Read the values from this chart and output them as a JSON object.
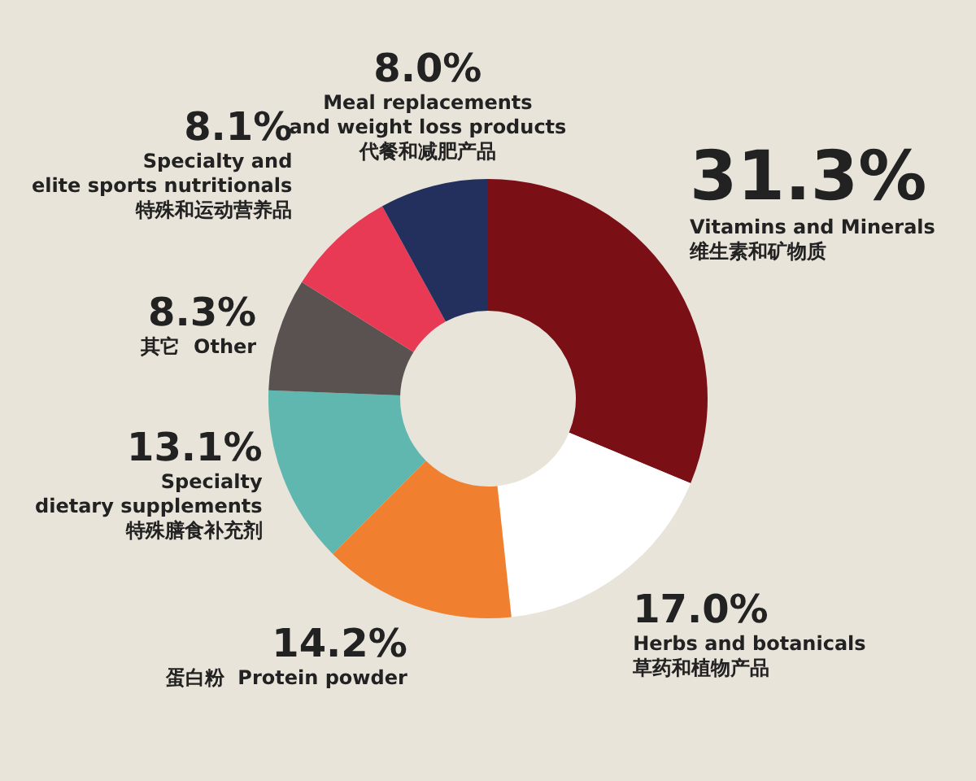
{
  "chart_data": {
    "type": "donut",
    "categories": [
      "Vitamins and Minerals\n维生素和矿物质",
      "Herbs and botanicals\n草药和植物产品",
      "蛋白粉  Protein powder",
      "Specialty\ndietary supplements\n特殊膳食补充剂",
      "其它  Other",
      "Specialty and\nelite sports nutritionals\n特殊和运动营养品",
      "Meal replacements\nand weight loss products\n代餐和减肥产品"
    ],
    "values": [
      31.3,
      17.0,
      14.2,
      13.1,
      8.3,
      8.1,
      8.0
    ],
    "value_labels": [
      "31.3%",
      "17.0%",
      "14.2%",
      "13.1%",
      "8.3%",
      "8.1%",
      "8.0%"
    ],
    "colors": [
      "#7a1015",
      "#ffffff",
      "#f08030",
      "#5fb7b0",
      "#5a5250",
      "#e83a55",
      "#23305e"
    ]
  }
}
